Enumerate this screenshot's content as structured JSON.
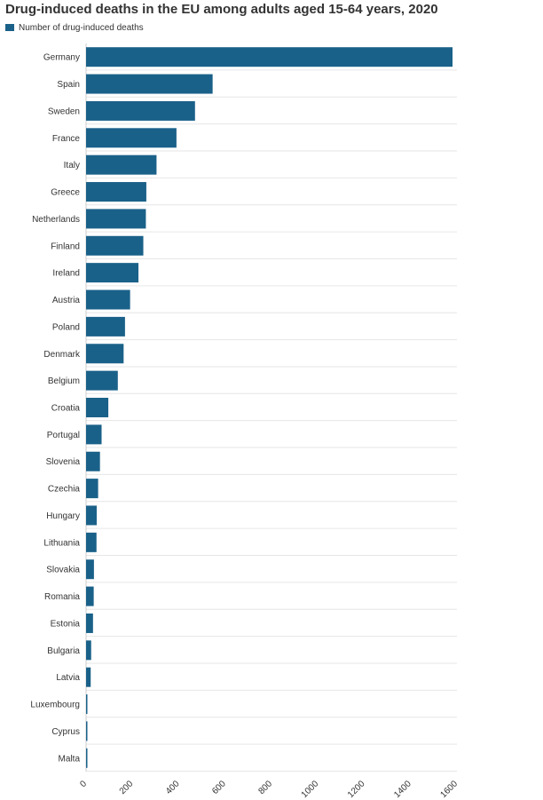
{
  "title": "Drug-induced deaths in the EU among adults aged 15-64 years, 2020",
  "legend": {
    "label": "Number of drug-induced deaths",
    "color": "#1a6189"
  },
  "chart_data": {
    "type": "bar",
    "orientation": "horizontal",
    "title": "Drug-induced deaths in the EU among adults aged 15-64 years, 2020",
    "xlabel": "",
    "ylabel": "",
    "xlim": [
      0,
      1600
    ],
    "ticks": [
      0,
      200,
      400,
      600,
      800,
      1000,
      1200,
      1400,
      1600
    ],
    "grid": true,
    "legend_position": "top-left",
    "bar_color": "#1a6189",
    "categories": [
      "Germany",
      "Spain",
      "Sweden",
      "France",
      "Italy",
      "Greece",
      "Netherlands",
      "Finland",
      "Ireland",
      "Austria",
      "Poland",
      "Denmark",
      "Belgium",
      "Croatia",
      "Portugal",
      "Slovenia",
      "Czechia",
      "Hungary",
      "Lithuania",
      "Slovakia",
      "Romania",
      "Estonia",
      "Bulgaria",
      "Latvia",
      "Luxembourg",
      "Cyprus",
      "Malta"
    ],
    "series": [
      {
        "name": "Number of drug-induced deaths",
        "values": [
          1581,
          546,
          470,
          390,
          304,
          260,
          258,
          247,
          226,
          190,
          168,
          162,
          137,
          96,
          67,
          60,
          52,
          46,
          45,
          34,
          33,
          30,
          22,
          20,
          4,
          4,
          3
        ]
      }
    ]
  }
}
